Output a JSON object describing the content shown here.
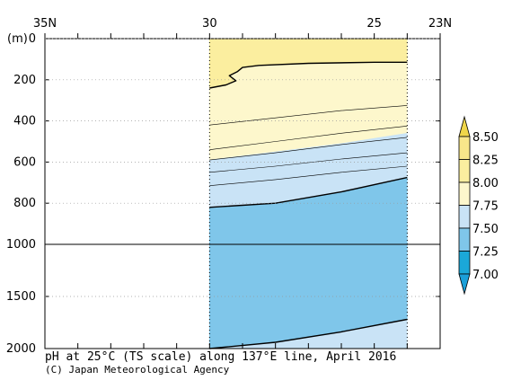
{
  "chart_data": {
    "type": "heatmap",
    "title": "pH at 25°C (TS scale) along 137°E line, April 2016",
    "credit": "(C) Japan Meteorological Agency",
    "ylabel_unit": "(m)",
    "x_axis": {
      "variable": "latitude",
      "range_north": [
        35,
        23
      ],
      "tick_labels": [
        {
          "lat": 35,
          "label": "35N"
        },
        {
          "lat": 30,
          "label": "30"
        },
        {
          "lat": 25,
          "label": "25"
        },
        {
          "lat": 23,
          "label": "23N"
        }
      ],
      "minor_tick_lats": [
        34,
        33,
        32,
        31,
        29,
        28,
        27,
        26,
        24
      ]
    },
    "y_axis": {
      "variable": "depth",
      "upper_range": [
        0,
        1000
      ],
      "lower_range": [
        1000,
        2000
      ],
      "scale_break_at": 1000,
      "tick_labels": [
        "0",
        "200",
        "400",
        "600",
        "800",
        "1000",
        "1500",
        "2000"
      ],
      "tick_values": [
        0,
        200,
        400,
        600,
        800,
        1000,
        1500,
        2000
      ]
    },
    "data_extent_lat": [
      30,
      24
    ],
    "station_lats": [
      30,
      24
    ],
    "colorbar": {
      "levels": [
        "8.50",
        "8.25",
        "8.00",
        "7.75",
        "7.50",
        "7.25",
        "7.00"
      ],
      "bands": [
        {
          "range": [
            8.25,
            8.5
          ],
          "color": "#f8e68a"
        },
        {
          "range": [
            8.0,
            8.25
          ],
          "color": "#fbee9f"
        },
        {
          "range": [
            7.75,
            8.0
          ],
          "color": "#fdf7cc"
        },
        {
          "range": [
            7.5,
            7.75
          ],
          "color": "#c9e3f6"
        },
        {
          "range": [
            7.25,
            7.5
          ],
          "color": "#7fc6ea"
        },
        {
          "range": [
            7.0,
            7.25
          ],
          "color": "#1ba8d8"
        }
      ],
      "top_cap_color": "#f0d64a",
      "bottom_cap_color": "#1b9fd8"
    },
    "contours": [
      {
        "level": 8.0,
        "bold": true,
        "points": [
          [
            30,
            240
          ],
          [
            29.5,
            225
          ],
          [
            29.2,
            205
          ],
          [
            29.4,
            180
          ],
          [
            29.15,
            160
          ],
          [
            29.0,
            140
          ],
          [
            28.5,
            130
          ],
          [
            27,
            120
          ],
          [
            25,
            115
          ],
          [
            24,
            115
          ]
        ]
      },
      {
        "level": 7.95,
        "bold": false,
        "points": [
          [
            30,
            420
          ],
          [
            28,
            385
          ],
          [
            26,
            350
          ],
          [
            24,
            325
          ]
        ]
      },
      {
        "level": 7.9,
        "bold": false,
        "points": [
          [
            30,
            540
          ],
          [
            28,
            500
          ],
          [
            26,
            460
          ],
          [
            24,
            425
          ]
        ]
      },
      {
        "level": 7.85,
        "bold": false,
        "points": [
          [
            30,
            590
          ],
          [
            28,
            555
          ],
          [
            26,
            515
          ],
          [
            24,
            480
          ]
        ]
      },
      {
        "level": 7.7,
        "bold": false,
        "points": [
          [
            30,
            650
          ],
          [
            28,
            620
          ],
          [
            26,
            585
          ],
          [
            24,
            555
          ]
        ]
      },
      {
        "level": 7.65,
        "bold": false,
        "points": [
          [
            30,
            715
          ],
          [
            28,
            685
          ],
          [
            26,
            650
          ],
          [
            24,
            620
          ]
        ]
      },
      {
        "level": 7.5,
        "bold": true,
        "points": [
          [
            30,
            820
          ],
          [
            28,
            800
          ],
          [
            26,
            745
          ],
          [
            24,
            675
          ]
        ]
      },
      {
        "level": 7.45,
        "bold": true,
        "points": [
          [
            30,
            2000
          ],
          [
            28,
            1940
          ],
          [
            26,
            1840
          ],
          [
            24,
            1720
          ]
        ]
      }
    ],
    "fill_regions": [
      {
        "color": "#fbee9f",
        "points": [
          [
            30,
            0
          ],
          [
            24,
            0
          ],
          [
            24,
            115
          ],
          [
            25,
            115
          ],
          [
            27,
            120
          ],
          [
            28.5,
            130
          ],
          [
            29.0,
            140
          ],
          [
            29.15,
            160
          ],
          [
            29.4,
            180
          ],
          [
            29.2,
            205
          ],
          [
            29.5,
            225
          ],
          [
            30,
            240
          ]
        ]
      },
      {
        "color": "#fdf7cc",
        "points": [
          [
            30,
            240
          ],
          [
            29.5,
            225
          ],
          [
            29.2,
            205
          ],
          [
            29.4,
            180
          ],
          [
            29.15,
            160
          ],
          [
            29.0,
            140
          ],
          [
            28.5,
            130
          ],
          [
            27,
            120
          ],
          [
            25,
            115
          ],
          [
            24,
            115
          ],
          [
            24,
            460
          ],
          [
            26,
            510
          ],
          [
            28,
            550
          ],
          [
            30,
            590
          ]
        ]
      },
      {
        "color": "#c9e3f6",
        "points": [
          [
            30,
            590
          ],
          [
            28,
            550
          ],
          [
            26,
            510
          ],
          [
            24,
            460
          ],
          [
            24,
            675
          ],
          [
            26,
            745
          ],
          [
            28,
            800
          ],
          [
            30,
            820
          ]
        ]
      },
      {
        "color": "#7fc6ea",
        "points": [
          [
            30,
            820
          ],
          [
            28,
            800
          ],
          [
            26,
            745
          ],
          [
            24,
            675
          ],
          [
            24,
            1720
          ],
          [
            26,
            1840
          ],
          [
            28,
            1940
          ],
          [
            30,
            2000
          ]
        ]
      },
      {
        "color": "#c9e3f6",
        "points": [
          [
            30,
            2000
          ],
          [
            28,
            1940
          ],
          [
            26,
            1840
          ],
          [
            24,
            1720
          ],
          [
            24,
            2000
          ]
        ]
      }
    ]
  }
}
